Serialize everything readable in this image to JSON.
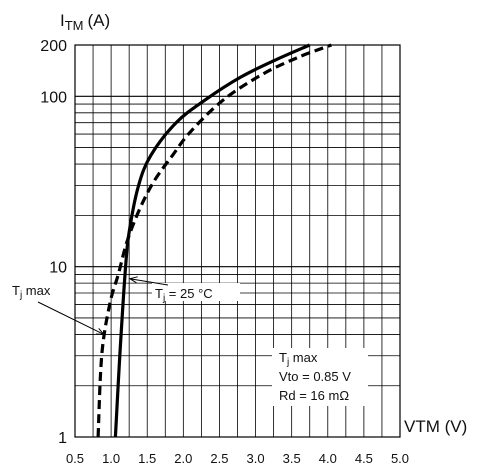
{
  "chart_data": {
    "type": "line",
    "y_axis_label": {
      "main": "I",
      "sub": "TM",
      "unit": "(A)"
    },
    "x_axis_label": "VTM (V)",
    "y_scale": "log",
    "ylim": [
      1,
      200
    ],
    "xlim": [
      0.5,
      5.0
    ],
    "grid": true,
    "y_tick_labels": [
      {
        "value": 1,
        "label": "1"
      },
      {
        "value": 10,
        "label": "10"
      },
      {
        "value": 100,
        "label": "100"
      },
      {
        "value": 200,
        "label": "200"
      }
    ],
    "x_tick_labels": [
      {
        "value": 0.5,
        "label": "0.5"
      },
      {
        "value": 1.0,
        "label": "1.0"
      },
      {
        "value": 1.5,
        "label": "1.5"
      },
      {
        "value": 2.0,
        "label": "2.0"
      },
      {
        "value": 2.5,
        "label": "2.5"
      },
      {
        "value": 3.0,
        "label": "3.0"
      },
      {
        "value": 3.5,
        "label": "3.5"
      },
      {
        "value": 4.0,
        "label": "4.0"
      },
      {
        "value": 4.5,
        "label": "4.5"
      },
      {
        "value": 5.0,
        "label": "5.0"
      }
    ],
    "series": [
      {
        "style": "solid",
        "color": "#000000",
        "points": [
          [
            1.06,
            1
          ],
          [
            1.12,
            3
          ],
          [
            1.2,
            10
          ],
          [
            1.26,
            17
          ],
          [
            1.38,
            30
          ],
          [
            1.55,
            45
          ],
          [
            1.9,
            70
          ],
          [
            2.3,
            95
          ],
          [
            2.8,
            130
          ],
          [
            3.3,
            165
          ],
          [
            3.75,
            200
          ]
        ]
      },
      {
        "style": "dashed",
        "color": "#000000",
        "points": [
          [
            0.82,
            1
          ],
          [
            0.87,
            3
          ],
          [
            0.98,
            6
          ],
          [
            1.1,
            9
          ],
          [
            1.22,
            14
          ],
          [
            1.4,
            22
          ],
          [
            1.6,
            32
          ],
          [
            1.85,
            45
          ],
          [
            2.1,
            62
          ],
          [
            2.55,
            95
          ],
          [
            3.1,
            135
          ],
          [
            3.6,
            170
          ],
          [
            4.05,
            200
          ]
        ]
      }
    ],
    "annotations": [
      {
        "id": "tj25",
        "label": "T",
        "sub": "j",
        "rest": " = 25 °C",
        "arrow_to": [
          1.26,
          8.5
        ]
      },
      {
        "id": "tjmax",
        "label": "T",
        "sub": "j",
        "rest": " max",
        "arrow_to": [
          0.9,
          4.0
        ]
      },
      {
        "id": "params",
        "lines": [
          {
            "label": "T",
            "sub": "j",
            "rest": " max"
          },
          {
            "label": "Vto = 0.85 V"
          },
          {
            "label": "Rd = 16 mΩ"
          }
        ]
      }
    ],
    "colors": {
      "line": "#000000",
      "grid": "#000000",
      "background": "#ffffff"
    }
  }
}
